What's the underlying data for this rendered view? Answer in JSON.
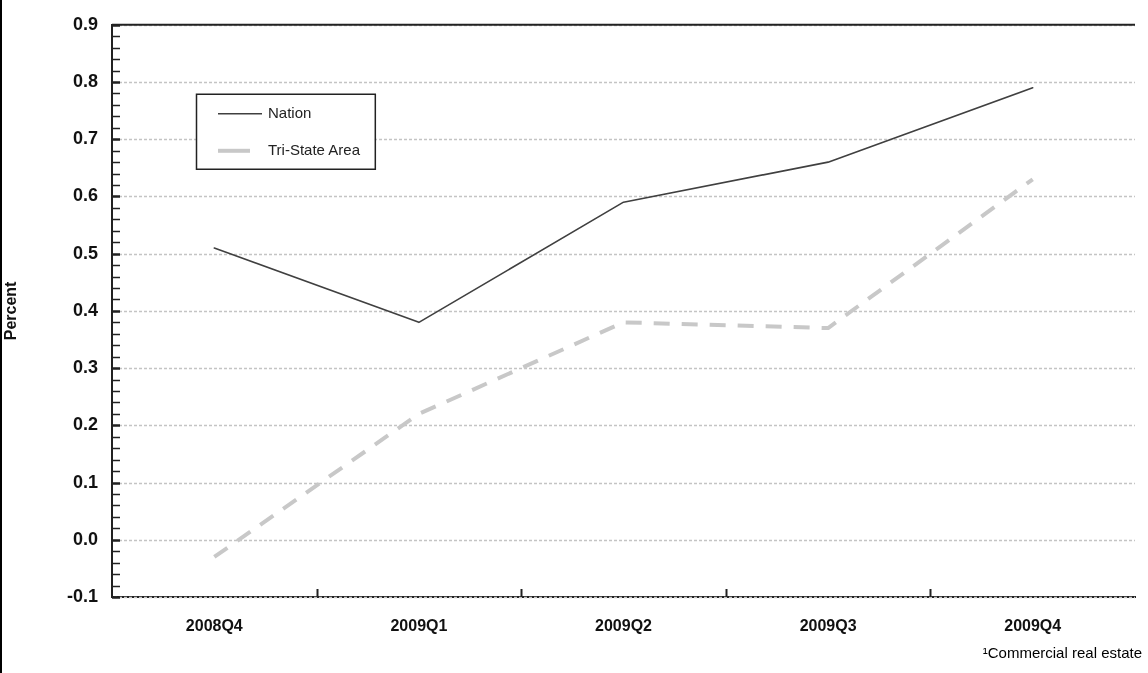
{
  "chart_data": {
    "type": "line",
    "ylabel": "Percent",
    "categories": [
      "2008Q4",
      "2009Q1",
      "2009Q2",
      "2009Q3",
      "2009Q4"
    ],
    "series": [
      {
        "name": "Nation",
        "color": "#404040",
        "values": [
          0.51,
          0.38,
          0.59,
          0.66,
          0.79
        ],
        "line_style": "solid"
      },
      {
        "name": "Tri-State Area",
        "color": "#c8c8c8",
        "values": [
          -0.03,
          0.22,
          0.38,
          0.37,
          0.63
        ],
        "line_style": "dashed"
      }
    ],
    "ylim": [
      -0.1,
      0.9
    ],
    "yticks": [
      -0.1,
      {
        "value": -0.08,
        "label": null
      },
      {
        "value": -0.06,
        "label": null
      },
      {
        "value": -0.04,
        "label": null
      },
      {
        "value": -0.02,
        "label": null
      },
      {
        "value": 0,
        "label": "0.0"
      },
      {
        "value": 0.02,
        "label": null
      },
      {
        "value": 0.04,
        "label": null
      },
      {
        "value": 0.06,
        "label": null
      },
      {
        "value": 0.08,
        "label": null
      },
      0.1,
      {
        "value": 0.12,
        "label": null
      },
      {
        "value": 0.14,
        "label": null
      },
      {
        "value": 0.16,
        "label": null
      },
      {
        "value": 0.18,
        "label": null
      },
      0.2,
      {
        "value": 0.22,
        "label": null
      },
      {
        "value": 0.24,
        "label": null
      },
      {
        "value": 0.26,
        "label": null
      },
      {
        "value": 0.28,
        "label": null
      },
      0.3,
      {
        "value": 0.32,
        "label": null
      },
      {
        "value": 0.34,
        "label": null
      },
      {
        "value": 0.36,
        "label": null
      },
      {
        "value": 0.38,
        "label": null
      },
      0.4,
      {
        "value": 0.42,
        "label": null
      },
      {
        "value": 0.44,
        "label": null
      },
      {
        "value": 0.46,
        "label": null
      },
      {
        "value": 0.48,
        "label": null
      },
      0.5,
      {
        "value": 0.52,
        "label": null
      },
      {
        "value": 0.54,
        "label": null
      },
      {
        "value": 0.56,
        "label": null
      },
      {
        "value": 0.58,
        "label": null
      },
      0.6,
      {
        "value": 0.62,
        "label": null
      },
      {
        "value": 0.64,
        "label": null
      },
      {
        "value": 0.66,
        "label": null
      },
      {
        "value": 0.68,
        "label": null
      },
      0.7,
      {
        "value": 0.72,
        "label": null
      },
      {
        "value": 0.74,
        "label": null
      },
      {
        "value": 0.76,
        "label": null
      },
      {
        "value": 0.78,
        "label": null
      },
      0.8,
      {
        "value": 0.82,
        "label": null
      },
      {
        "value": 0.84,
        "label": null
      },
      {
        "value": 0.86,
        "label": null
      },
      {
        "value": 0.88,
        "label": null
      },
      0.9
    ],
    "grid": "y",
    "legend": "top left",
    "marker": "none",
    "annotations": [
      "¹Commercial real estate"
    ]
  }
}
